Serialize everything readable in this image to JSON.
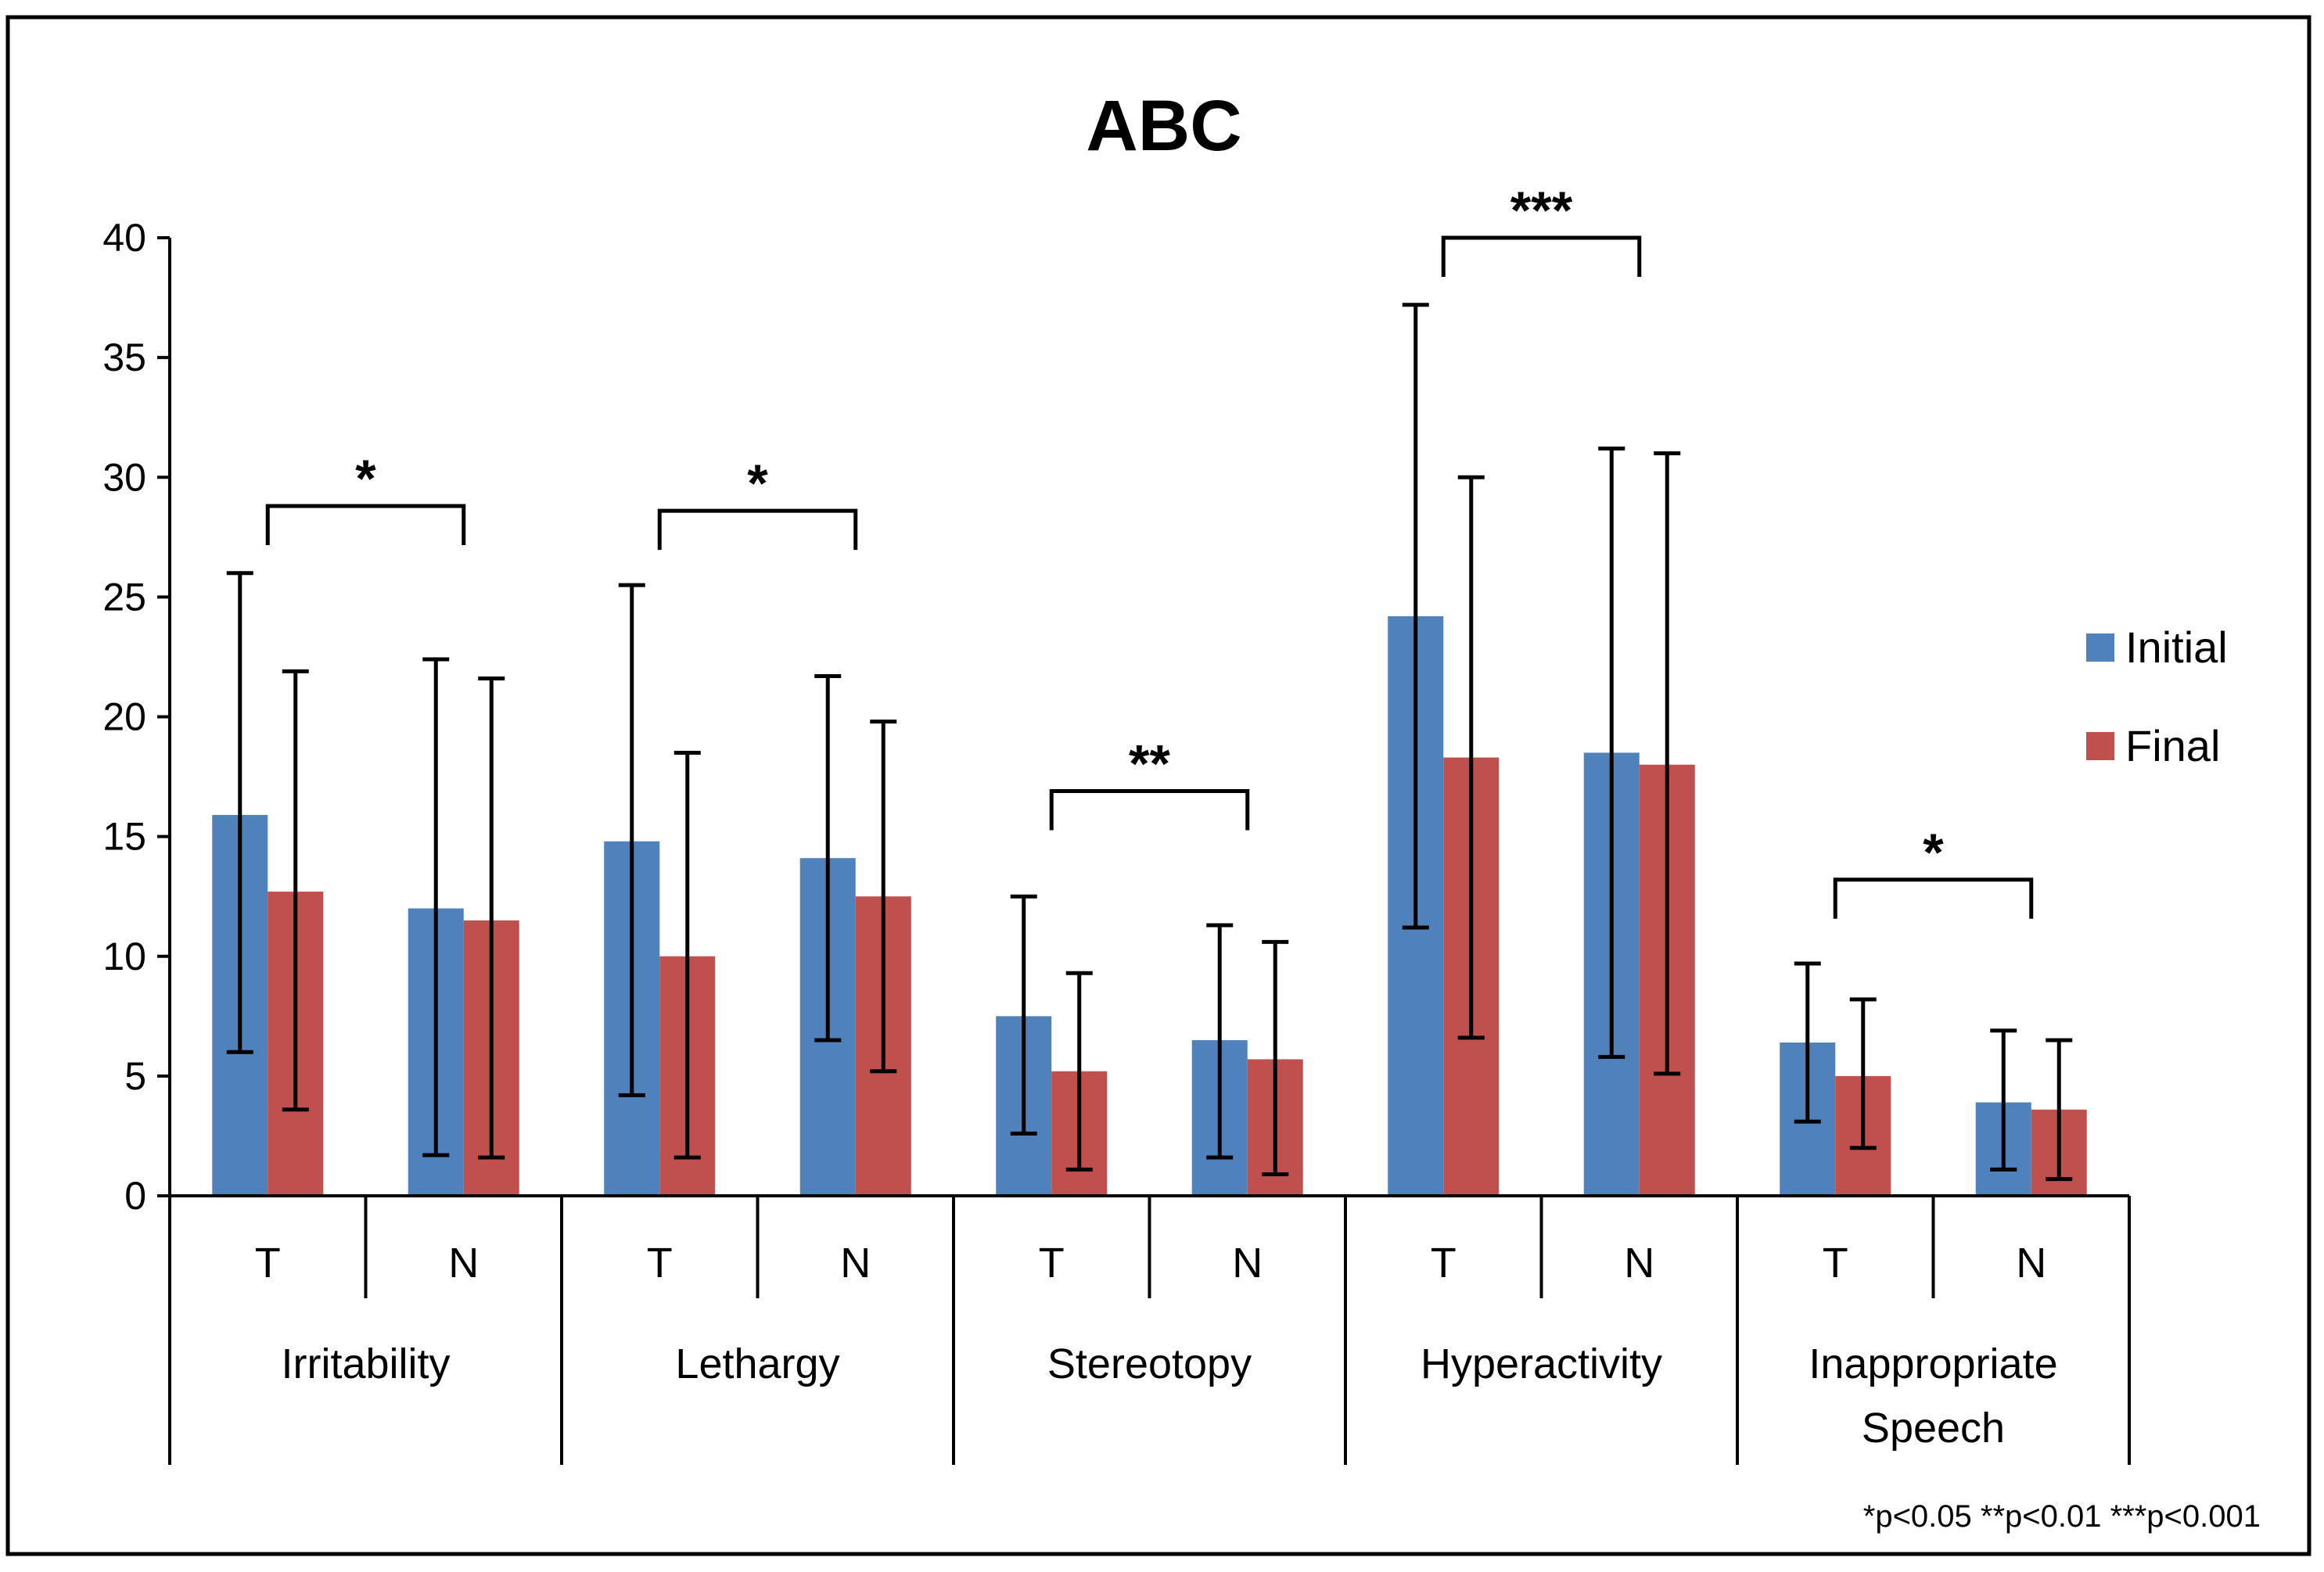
{
  "chart_data": {
    "type": "bar",
    "title": "ABC",
    "xlabel": "",
    "ylabel": "",
    "ylim": [
      0,
      40
    ],
    "yticks": [
      0,
      5,
      10,
      15,
      20,
      25,
      30,
      35,
      40
    ],
    "groups": [
      {
        "label": "Irritability",
        "lines": [
          "Irritability"
        ],
        "categories": [
          "T",
          "N"
        ]
      },
      {
        "label": "Lethargy",
        "lines": [
          "Lethargy"
        ],
        "categories": [
          "T",
          "N"
        ]
      },
      {
        "label": "Stereotopy",
        "lines": [
          "Stereotopy"
        ],
        "categories": [
          "T",
          "N"
        ]
      },
      {
        "label": "Hyperactivity",
        "lines": [
          "Hyperactivity"
        ],
        "categories": [
          "T",
          "N"
        ]
      },
      {
        "label": "Inappropriate Speech",
        "lines": [
          "Inappropriate",
          "Speech"
        ],
        "categories": [
          "T",
          "N"
        ]
      }
    ],
    "categories": [
      "Irritability T",
      "Irritability N",
      "Lethargy T",
      "Lethargy N",
      "Stereotopy T",
      "Stereotopy N",
      "Hyperactivity T",
      "Hyperactivity N",
      "Inappropriate Speech T",
      "Inappropriate Speech N"
    ],
    "series": [
      {
        "name": "Initial",
        "color": "#4F81BD",
        "values": [
          15.9,
          12.0,
          14.8,
          14.1,
          7.5,
          6.5,
          24.2,
          18.5,
          6.4,
          3.9
        ],
        "error_low": [
          6.0,
          1.7,
          4.2,
          6.5,
          2.6,
          1.6,
          11.2,
          5.8,
          3.1,
          1.1
        ],
        "error_high": [
          26.0,
          22.4,
          25.5,
          21.7,
          12.5,
          11.3,
          37.2,
          31.2,
          9.7,
          6.9
        ]
      },
      {
        "name": "Final",
        "color": "#C0504D",
        "values": [
          12.7,
          11.5,
          10.0,
          12.5,
          5.2,
          5.7,
          18.3,
          18.0,
          5.0,
          3.6
        ],
        "error_low": [
          3.6,
          1.6,
          1.6,
          5.2,
          1.1,
          0.9,
          6.6,
          5.1,
          2.0,
          0.7
        ],
        "error_high": [
          21.9,
          21.6,
          18.5,
          19.8,
          9.3,
          10.6,
          30.0,
          31.0,
          8.2,
          6.5
        ]
      }
    ],
    "significance": [
      {
        "group": "Irritability",
        "label": "*",
        "level": 28.8
      },
      {
        "group": "Lethargy",
        "label": "*",
        "level": 28.6
      },
      {
        "group": "Stereotopy",
        "label": "**",
        "level": 16.9
      },
      {
        "group": "Hyperactivity",
        "label": "***",
        "level": 40.0
      },
      {
        "group": "Inappropriate Speech",
        "label": "*",
        "level": 13.2
      }
    ],
    "legend": {
      "position": "right",
      "entries": [
        "Initial",
        "Final"
      ]
    },
    "footnote": "*p<0.05 **p<0.01 ***p<0.001",
    "grid": false
  }
}
